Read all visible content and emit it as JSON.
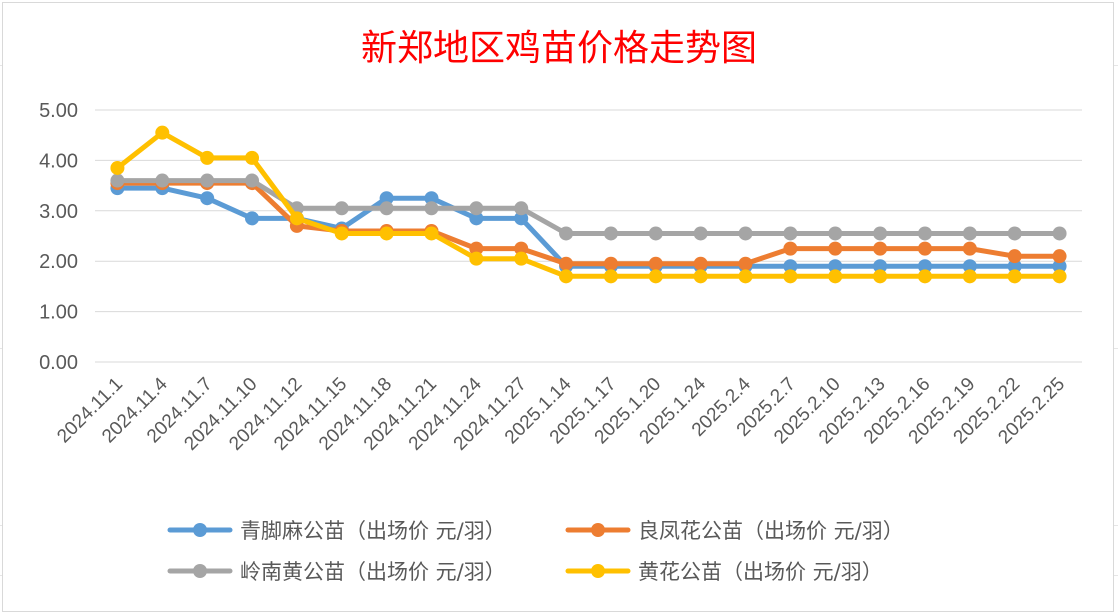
{
  "chart_data": {
    "type": "line",
    "title": "新郑地区鸡苗价格走势图",
    "xlabel": "",
    "ylabel": "",
    "ylim": [
      0,
      5
    ],
    "y_ticks": [
      "0.00",
      "1.00",
      "2.00",
      "3.00",
      "4.00",
      "5.00"
    ],
    "grid": "horizontal",
    "legend_position": "bottom",
    "categories": [
      "2024.11.1",
      "2024.11.4",
      "2024.11.7",
      "2024.11.10",
      "2024.11.12",
      "2024.11.15",
      "2024.11.18",
      "2024.11.21",
      "2024.11.24",
      "2024.11.27",
      "2025.1.14",
      "2025.1.17",
      "2025.1.20",
      "2025.1.24",
      "2025.2.4",
      "2025.2.7",
      "2025.2.10",
      "2025.2.13",
      "2025.2.16",
      "2025.2.19",
      "2025.2.22",
      "2025.2.25"
    ],
    "series": [
      {
        "name": "青脚麻公苗（出场价 元/羽）",
        "color": "#5b9bd5",
        "values": [
          3.45,
          3.45,
          3.25,
          2.85,
          2.85,
          2.65,
          3.25,
          3.25,
          2.85,
          2.85,
          1.9,
          1.9,
          1.9,
          1.9,
          1.9,
          1.9,
          1.9,
          1.9,
          1.9,
          1.9,
          1.9,
          1.9
        ]
      },
      {
        "name": "良凤花公苗（出场价 元/羽）",
        "color": "#ed7d31",
        "values": [
          3.55,
          3.55,
          3.55,
          3.55,
          2.7,
          2.6,
          2.6,
          2.6,
          2.25,
          2.25,
          1.95,
          1.95,
          1.95,
          1.95,
          1.95,
          2.25,
          2.25,
          2.25,
          2.25,
          2.25,
          2.1,
          2.1
        ]
      },
      {
        "name": "岭南黄公苗（出场价 元/羽）",
        "color": "#a5a5a5",
        "values": [
          3.6,
          3.6,
          3.6,
          3.6,
          3.05,
          3.05,
          3.05,
          3.05,
          3.05,
          3.05,
          2.55,
          2.55,
          2.55,
          2.55,
          2.55,
          2.55,
          2.55,
          2.55,
          2.55,
          2.55,
          2.55,
          2.55
        ]
      },
      {
        "name": "黄花公苗（出场价 元/羽）",
        "color": "#ffc000",
        "values": [
          3.85,
          4.55,
          4.05,
          4.05,
          2.85,
          2.55,
          2.55,
          2.55,
          2.05,
          2.05,
          1.7,
          1.7,
          1.7,
          1.7,
          1.7,
          1.7,
          1.7,
          1.7,
          1.7,
          1.7,
          1.7,
          1.7
        ]
      }
    ]
  }
}
